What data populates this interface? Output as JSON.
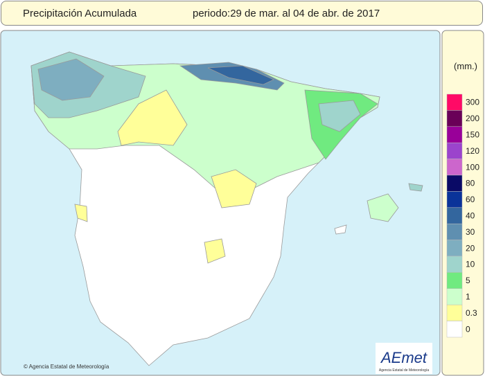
{
  "header": {
    "title": "Precipitación Acumulada",
    "period": "periodo:29 de mar. al 04 de abr. de 2017"
  },
  "legend": {
    "unit": "(mm.)",
    "items": [
      {
        "label": "300",
        "color": "#ff0a66"
      },
      {
        "label": "200",
        "color": "#6a0058"
      },
      {
        "label": "150",
        "color": "#990099"
      },
      {
        "label": "120",
        "color": "#9b44cc"
      },
      {
        "label": "100",
        "color": "#cc66cc"
      },
      {
        "label": "80",
        "color": "#0a0a66"
      },
      {
        "label": "60",
        "color": "#0a3399"
      },
      {
        "label": "40",
        "color": "#33669e"
      },
      {
        "label": "30",
        "color": "#5f8fb0"
      },
      {
        "label": "20",
        "color": "#7eaec0"
      },
      {
        "label": "10",
        "color": "#9fd4cc"
      },
      {
        "label": "5",
        "color": "#70ea80"
      },
      {
        "label": "1",
        "color": "#ccffcc"
      },
      {
        "label": "0.3",
        "color": "#ffff99"
      },
      {
        "label": "0",
        "color": "#ffffff"
      }
    ]
  },
  "footer": {
    "copyright": "© Agencia Estatal de Meteorología",
    "logo": "AEmet",
    "logo_caption": "Agencia Estatal de Meteorología"
  }
}
